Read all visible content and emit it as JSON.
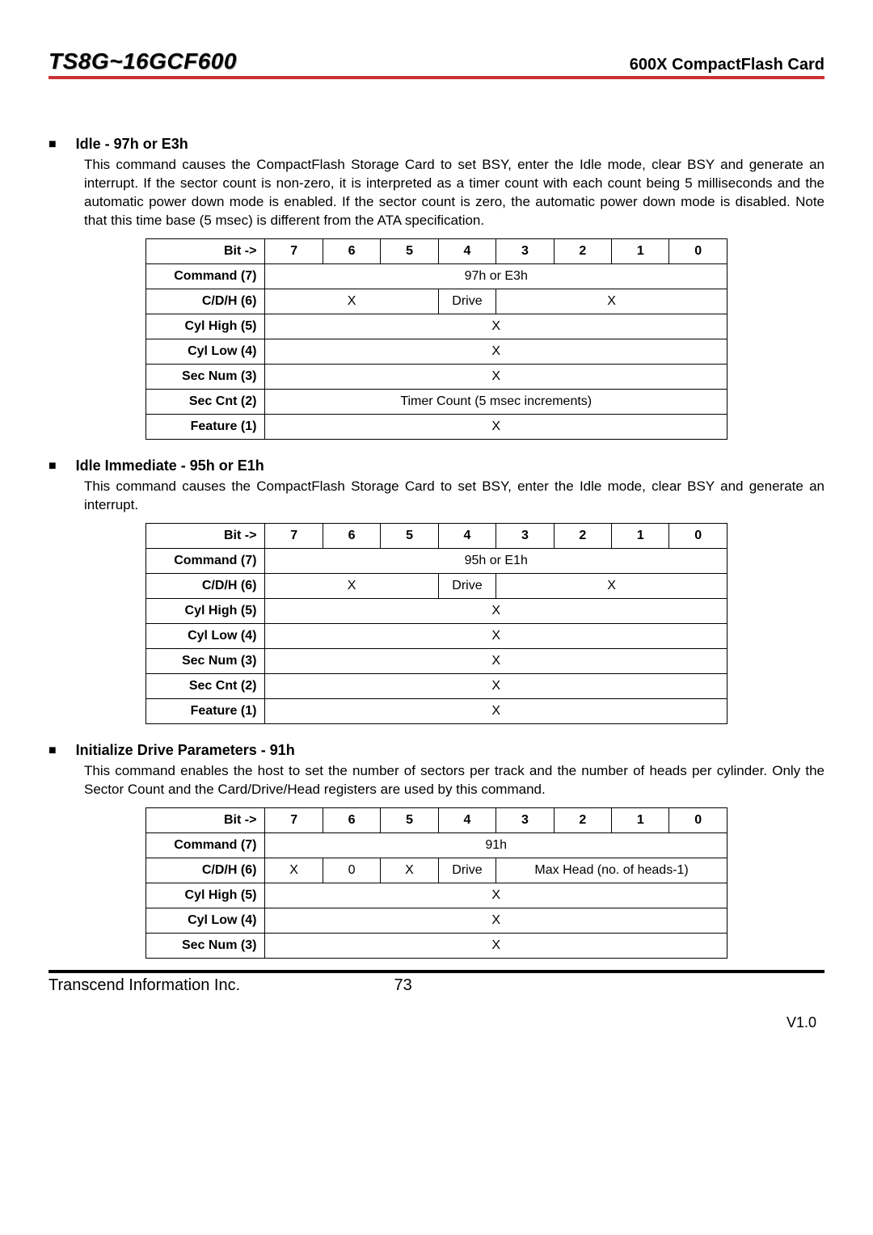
{
  "header": {
    "model": "TS8G~16GCF600",
    "product": "600X CompactFlash Card"
  },
  "sections": [
    {
      "title": "Idle - 97h or E3h",
      "desc": "This command causes the CompactFlash Storage Card to set BSY, enter the Idle mode, clear BSY and generate an interrupt. If the sector count is non-zero, it is interpreted as a timer count with each count being 5 milliseconds and the automatic power down mode is enabled. If the sector count is zero, the automatic power down mode is disabled. Note that this time base (5 msec) is different from the ATA specification.",
      "bit_labels": [
        "7",
        "6",
        "5",
        "4",
        "3",
        "2",
        "1",
        "0"
      ],
      "rows": [
        {
          "label": "Command (7)",
          "cells": [
            {
              "text": "97h or E3h",
              "span": 8
            }
          ]
        },
        {
          "label": "C/D/H (6)",
          "cells": [
            {
              "text": "X",
              "span": 3
            },
            {
              "text": "Drive",
              "span": 1
            },
            {
              "text": "X",
              "span": 4
            }
          ]
        },
        {
          "label": "Cyl High (5)",
          "cells": [
            {
              "text": "X",
              "span": 8
            }
          ]
        },
        {
          "label": "Cyl Low (4)",
          "cells": [
            {
              "text": "X",
              "span": 8
            }
          ]
        },
        {
          "label": "Sec Num (3)",
          "cells": [
            {
              "text": "X",
              "span": 8
            }
          ]
        },
        {
          "label": "Sec Cnt (2)",
          "cells": [
            {
              "text": "Timer Count (5 msec increments)",
              "span": 8
            }
          ]
        },
        {
          "label": "Feature (1)",
          "cells": [
            {
              "text": "X",
              "span": 8
            }
          ]
        }
      ]
    },
    {
      "title": "Idle Immediate - 95h or E1h",
      "desc": "This command causes the CompactFlash Storage Card to set BSY, enter the Idle mode, clear BSY and generate an interrupt.",
      "bit_labels": [
        "7",
        "6",
        "5",
        "4",
        "3",
        "2",
        "1",
        "0"
      ],
      "rows": [
        {
          "label": "Command (7)",
          "cells": [
            {
              "text": "95h or E1h",
              "span": 8
            }
          ]
        },
        {
          "label": "C/D/H (6)",
          "cells": [
            {
              "text": "X",
              "span": 3
            },
            {
              "text": "Drive",
              "span": 1
            },
            {
              "text": "X",
              "span": 4
            }
          ]
        },
        {
          "label": "Cyl High (5)",
          "cells": [
            {
              "text": "X",
              "span": 8
            }
          ]
        },
        {
          "label": "Cyl Low (4)",
          "cells": [
            {
              "text": "X",
              "span": 8
            }
          ]
        },
        {
          "label": "Sec Num (3)",
          "cells": [
            {
              "text": "X",
              "span": 8
            }
          ]
        },
        {
          "label": "Sec Cnt (2)",
          "cells": [
            {
              "text": "X",
              "span": 8
            }
          ]
        },
        {
          "label": "Feature (1)",
          "cells": [
            {
              "text": "X",
              "span": 8
            }
          ]
        }
      ]
    },
    {
      "title": "Initialize Drive Parameters - 91h",
      "desc": "This command enables the host to set the number of sectors per track and the number of heads per cylinder. Only the Sector Count and the Card/Drive/Head registers are used by this command.",
      "bit_labels": [
        "7",
        "6",
        "5",
        "4",
        "3",
        "2",
        "1",
        "0"
      ],
      "rows": [
        {
          "label": "Command (7)",
          "cells": [
            {
              "text": "91h",
              "span": 8
            }
          ]
        },
        {
          "label": "C/D/H (6)",
          "cells": [
            {
              "text": "X",
              "span": 1
            },
            {
              "text": "0",
              "span": 1
            },
            {
              "text": "X",
              "span": 1
            },
            {
              "text": "Drive",
              "span": 1
            },
            {
              "text": "Max Head (no. of heads-1)",
              "span": 4
            }
          ]
        },
        {
          "label": "Cyl High (5)",
          "cells": [
            {
              "text": "X",
              "span": 8
            }
          ]
        },
        {
          "label": "Cyl Low (4)",
          "cells": [
            {
              "text": "X",
              "span": 8
            }
          ]
        },
        {
          "label": "Sec Num (3)",
          "cells": [
            {
              "text": "X",
              "span": 8
            }
          ]
        }
      ]
    }
  ],
  "footer": {
    "company": "Transcend Information Inc.",
    "page": "73",
    "version": "V1.0"
  },
  "bit_header_label": "Bit ->"
}
